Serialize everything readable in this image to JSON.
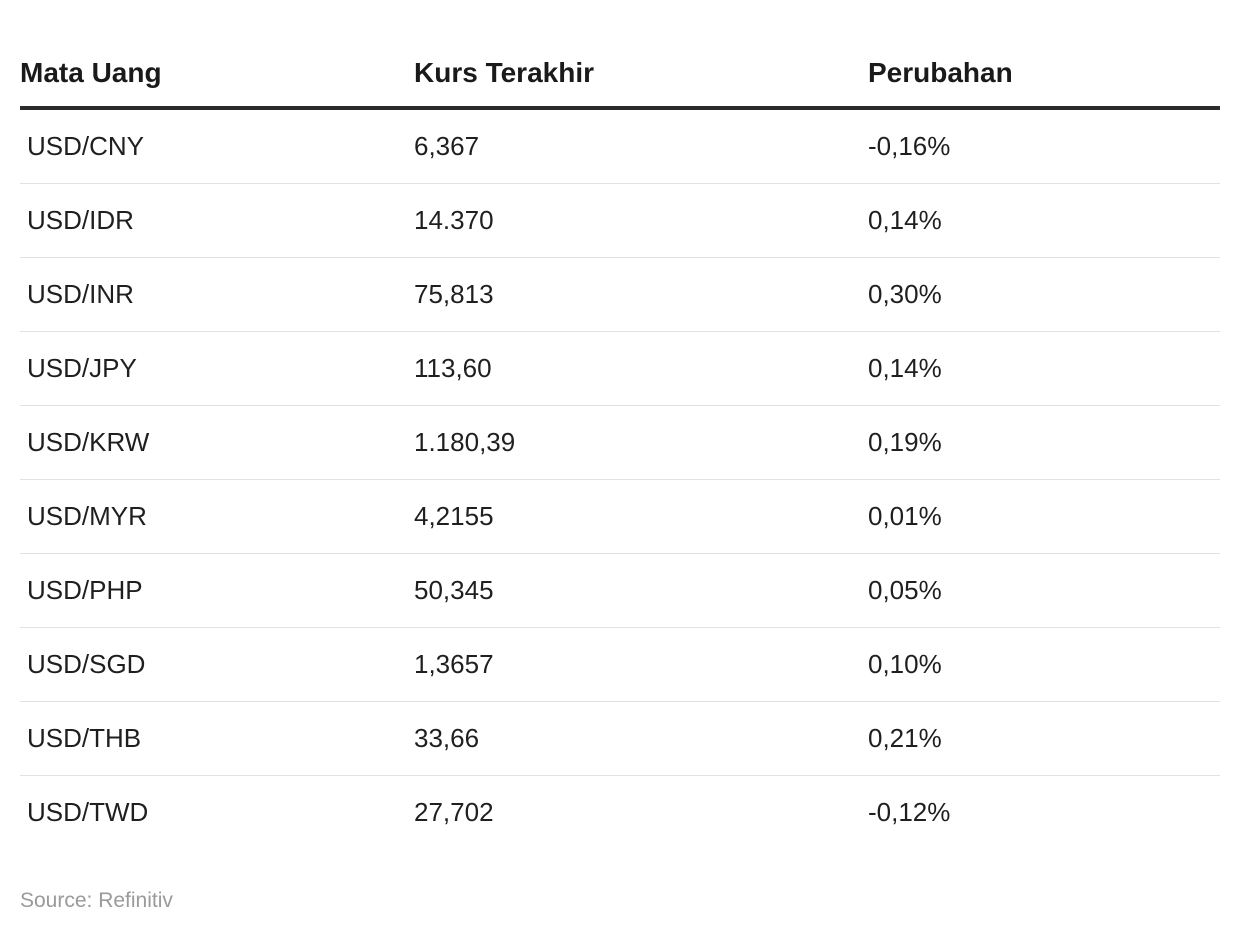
{
  "chart_data": {
    "type": "table",
    "columns": [
      "Mata Uang",
      "Kurs Terakhir",
      "Perubahan"
    ],
    "rows": [
      [
        "USD/CNY",
        "6,367",
        "-0,16%"
      ],
      [
        "USD/IDR",
        "14.370",
        "0,14%"
      ],
      [
        "USD/INR",
        "75,813",
        "0,30%"
      ],
      [
        "USD/JPY",
        "113,60",
        "0,14%"
      ],
      [
        "USD/KRW",
        "1.180,39",
        "0,19%"
      ],
      [
        "USD/MYR",
        "4,2155",
        "0,01%"
      ],
      [
        "USD/PHP",
        "50,345",
        "0,05%"
      ],
      [
        "USD/SGD",
        "1,3657",
        "0,10%"
      ],
      [
        "USD/THB",
        "33,66",
        "0,21%"
      ],
      [
        "USD/TWD",
        "27,702",
        "-0,12%"
      ]
    ],
    "source": "Source: Refinitiv"
  }
}
